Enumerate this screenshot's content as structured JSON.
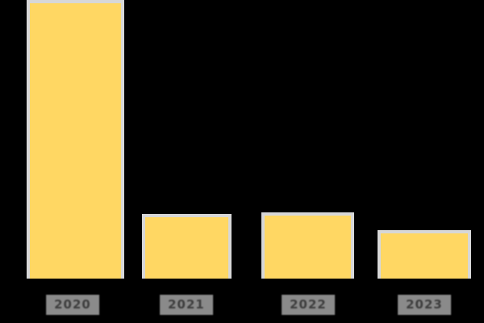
{
  "background_color": "#000000",
  "chart_data": {
    "type": "bar",
    "title": "",
    "xlabel": "",
    "ylabel": "",
    "categories": [
      "2020",
      "2021",
      "2022",
      "2023"
    ],
    "values": [
      100,
      23.2,
      23.8,
      17.4
    ],
    "ylim": [
      0,
      100
    ],
    "grid": false,
    "legend": "none",
    "axes_visible": false,
    "bar_color": "#FFD763",
    "bar_border_color": "#D7D7D7",
    "tick_chip_background": "#8A8A8A",
    "tick_text_color": "#3D3D3D"
  }
}
